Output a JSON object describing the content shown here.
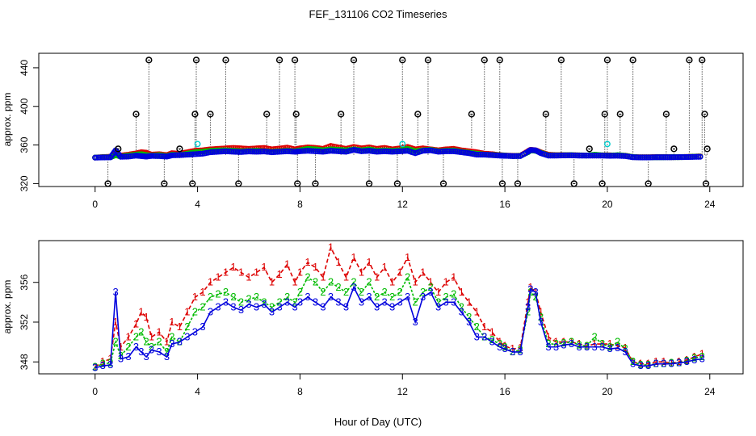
{
  "chart_data": {
    "title": "FEF_131106  CO2 Timeseries",
    "xlabel": "Hour of Day (UTC)",
    "panels": [
      {
        "id": "top",
        "type": "scatter",
        "ylabel": "approx. ppm",
        "xlim": [
          -2.2,
          25.3
        ],
        "ylim": [
          317,
          455
        ],
        "xticks": [
          0,
          4,
          8,
          12,
          16,
          20,
          24
        ],
        "yticks": [
          320,
          360,
          400,
          440
        ],
        "grid": false,
        "spike_base": 350,
        "spikes": [
          {
            "x": 0.5,
            "y": 320
          },
          {
            "x": 0.9,
            "y": 356
          },
          {
            "x": 1.6,
            "y": 392
          },
          {
            "x": 2.1,
            "y": 448
          },
          {
            "x": 2.7,
            "y": 320
          },
          {
            "x": 3.3,
            "y": 356
          },
          {
            "x": 3.8,
            "y": 320
          },
          {
            "x": 3.9,
            "y": 392
          },
          {
            "x": 3.95,
            "y": 448
          },
          {
            "x": 4.5,
            "y": 392
          },
          {
            "x": 5.1,
            "y": 448
          },
          {
            "x": 5.6,
            "y": 320
          },
          {
            "x": 6.7,
            "y": 392
          },
          {
            "x": 7.2,
            "y": 448
          },
          {
            "x": 7.8,
            "y": 448
          },
          {
            "x": 7.85,
            "y": 392
          },
          {
            "x": 7.9,
            "y": 320
          },
          {
            "x": 8.6,
            "y": 320
          },
          {
            "x": 9.6,
            "y": 392
          },
          {
            "x": 10.1,
            "y": 448
          },
          {
            "x": 10.7,
            "y": 320
          },
          {
            "x": 11.8,
            "y": 320
          },
          {
            "x": 12.0,
            "y": 448
          },
          {
            "x": 12.6,
            "y": 392
          },
          {
            "x": 13.0,
            "y": 448
          },
          {
            "x": 13.6,
            "y": 320
          },
          {
            "x": 14.7,
            "y": 392
          },
          {
            "x": 15.2,
            "y": 448
          },
          {
            "x": 15.8,
            "y": 448
          },
          {
            "x": 15.9,
            "y": 320
          },
          {
            "x": 16.5,
            "y": 320
          },
          {
            "x": 17.6,
            "y": 392
          },
          {
            "x": 18.2,
            "y": 448
          },
          {
            "x": 18.7,
            "y": 320
          },
          {
            "x": 19.3,
            "y": 356
          },
          {
            "x": 19.8,
            "y": 320
          },
          {
            "x": 19.9,
            "y": 392
          },
          {
            "x": 20.0,
            "y": 448
          },
          {
            "x": 20.5,
            "y": 392
          },
          {
            "x": 21.0,
            "y": 448
          },
          {
            "x": 21.6,
            "y": 320
          },
          {
            "x": 22.3,
            "y": 392
          },
          {
            "x": 22.6,
            "y": 356
          },
          {
            "x": 23.2,
            "y": 448
          },
          {
            "x": 23.7,
            "y": 448
          },
          {
            "x": 23.8,
            "y": 392
          },
          {
            "x": 23.85,
            "y": 320
          },
          {
            "x": 23.9,
            "y": 356
          }
        ],
        "highlights": [
          {
            "x": 4.0,
            "y": 361
          },
          {
            "x": 12.0,
            "y": 361
          },
          {
            "x": 20.0,
            "y": 361
          }
        ]
      },
      {
        "id": "bottom",
        "type": "line",
        "ylabel": "approx. ppm",
        "xlim": [
          -2.2,
          25.3
        ],
        "ylim": [
          346.8,
          360.2
        ],
        "xticks": [
          0,
          4,
          8,
          12,
          16,
          20,
          24
        ],
        "yticks": [
          348,
          352,
          356
        ],
        "grid": false,
        "series": [
          {
            "name": "1",
            "color": "#dd0000",
            "x": [
              0,
              0.3,
              0.6,
              0.8,
              1.0,
              1.3,
              1.6,
              1.8,
              2.0,
              2.2,
              2.5,
              2.8,
              3.0,
              3.3,
              3.6,
              3.9,
              4.2,
              4.5,
              4.8,
              5.1,
              5.4,
              5.7,
              6.0,
              6.3,
              6.6,
              6.9,
              7.2,
              7.5,
              7.8,
              8.0,
              8.3,
              8.6,
              8.9,
              9.2,
              9.5,
              9.8,
              10.1,
              10.4,
              10.7,
              11.0,
              11.3,
              11.6,
              11.9,
              12.2,
              12.5,
              12.8,
              13.1,
              13.4,
              13.7,
              14.0,
              14.3,
              14.6,
              14.9,
              15.2,
              15.5,
              15.8,
              16.0,
              16.3,
              16.6,
              16.9,
              17.0,
              17.2,
              17.4,
              17.7,
              18.0,
              18.3,
              18.6,
              18.9,
              19.2,
              19.5,
              19.8,
              20.1,
              20.4,
              20.7,
              21.0,
              21.3,
              21.6,
              21.9,
              22.2,
              22.5,
              22.8,
              23.1,
              23.4,
              23.7
            ],
            "y": [
              347.5,
              348.0,
              348.3,
              352.0,
              349.5,
              350.5,
              351.8,
              353.0,
              352.5,
              350.5,
              351.0,
              350.0,
              352.0,
              351.5,
              353.0,
              354.5,
              355.0,
              356.0,
              356.5,
              357.0,
              357.5,
              357.0,
              356.5,
              357.0,
              357.5,
              356.0,
              356.8,
              357.8,
              356.0,
              357.0,
              358.0,
              357.5,
              356.5,
              359.5,
              358.0,
              356.5,
              358.5,
              357.0,
              358.0,
              356.5,
              357.5,
              356.0,
              357.0,
              358.5,
              356.0,
              357.0,
              356.0,
              355.0,
              356.0,
              356.5,
              355.0,
              354.0,
              353.0,
              351.5,
              351.0,
              350.0,
              349.6,
              349.3,
              349.4,
              354.0,
              355.5,
              355.0,
              353.0,
              350.5,
              350.0,
              350.0,
              350.0,
              349.8,
              349.6,
              349.8,
              349.8,
              349.8,
              349.6,
              349.4,
              348.0,
              347.8,
              347.8,
              348.0,
              348.0,
              347.9,
              348.0,
              348.2,
              348.5,
              348.8
            ]
          },
          {
            "name": "2",
            "color": "#00bb00",
            "x": [
              0,
              0.3,
              0.6,
              0.8,
              1.0,
              1.3,
              1.6,
              1.8,
              2.0,
              2.2,
              2.5,
              2.8,
              3.0,
              3.3,
              3.6,
              3.9,
              4.2,
              4.5,
              4.8,
              5.1,
              5.4,
              5.7,
              6.0,
              6.3,
              6.6,
              6.9,
              7.2,
              7.5,
              7.8,
              8.0,
              8.3,
              8.6,
              8.9,
              9.2,
              9.5,
              9.8,
              10.1,
              10.4,
              10.7,
              11.0,
              11.3,
              11.6,
              11.9,
              12.2,
              12.5,
              12.8,
              13.1,
              13.4,
              13.7,
              14.0,
              14.3,
              14.6,
              14.9,
              15.2,
              15.5,
              15.8,
              16.0,
              16.3,
              16.6,
              16.9,
              17.0,
              17.2,
              17.4,
              17.7,
              18.0,
              18.3,
              18.6,
              18.9,
              19.2,
              19.5,
              19.8,
              20.1,
              20.4,
              20.7,
              21.0,
              21.3,
              21.6,
              21.9,
              22.2,
              22.5,
              22.8,
              23.1,
              23.4,
              23.7
            ],
            "y": [
              347.5,
              347.8,
              347.9,
              350.0,
              348.6,
              349.5,
              350.5,
              351.0,
              350.0,
              349.5,
              350.0,
              349.0,
              350.5,
              350.0,
              351.5,
              353.0,
              353.5,
              354.5,
              354.8,
              355.0,
              354.5,
              354.0,
              354.3,
              354.5,
              354.0,
              353.5,
              354.0,
              354.5,
              354.0,
              355.0,
              356.5,
              356.0,
              355.0,
              356.0,
              355.5,
              355.0,
              356.0,
              355.0,
              356.0,
              354.5,
              355.0,
              354.5,
              355.0,
              356.5,
              354.0,
              355.0,
              355.5,
              354.0,
              354.5,
              354.8,
              353.5,
              352.5,
              351.5,
              350.5,
              350.2,
              349.8,
              349.5,
              349.0,
              349.2,
              353.0,
              355.0,
              354.5,
              352.5,
              349.8,
              349.8,
              349.9,
              350.0,
              349.7,
              349.6,
              350.5,
              349.8,
              349.5,
              350.0,
              349.3,
              348.0,
              347.7,
              347.7,
              347.8,
              347.8,
              347.9,
              347.9,
              348.1,
              348.4,
              348.5
            ]
          },
          {
            "name": "3",
            "color": "#0000dd",
            "x": [
              0,
              0.3,
              0.6,
              0.8,
              1.0,
              1.3,
              1.6,
              1.8,
              2.0,
              2.2,
              2.5,
              2.8,
              3.0,
              3.3,
              3.6,
              3.9,
              4.2,
              4.5,
              4.8,
              5.1,
              5.4,
              5.7,
              6.0,
              6.3,
              6.6,
              6.9,
              7.2,
              7.5,
              7.8,
              8.0,
              8.3,
              8.6,
              8.9,
              9.2,
              9.5,
              9.8,
              10.1,
              10.4,
              10.7,
              11.0,
              11.3,
              11.6,
              11.9,
              12.2,
              12.5,
              12.8,
              13.1,
              13.4,
              13.7,
              14.0,
              14.3,
              14.6,
              14.9,
              15.2,
              15.5,
              15.8,
              16.0,
              16.3,
              16.6,
              16.9,
              17.0,
              17.2,
              17.4,
              17.7,
              18.0,
              18.3,
              18.6,
              18.9,
              19.2,
              19.5,
              19.8,
              20.1,
              20.4,
              20.7,
              21.0,
              21.3,
              21.6,
              21.9,
              22.2,
              22.5,
              22.8,
              23.1,
              23.4,
              23.7
            ],
            "y": [
              347.4,
              347.6,
              347.7,
              355.0,
              348.3,
              348.5,
              349.5,
              349.0,
              348.5,
              349.2,
              349.0,
              348.5,
              349.8,
              350.0,
              350.5,
              351.0,
              351.5,
              353.0,
              353.5,
              354.0,
              353.5,
              353.2,
              353.8,
              353.5,
              353.8,
              353.0,
              353.5,
              354.0,
              353.5,
              354.0,
              354.5,
              354.0,
              353.5,
              354.5,
              354.0,
              353.5,
              355.5,
              354.0,
              354.5,
              353.5,
              354.0,
              353.5,
              354.0,
              354.5,
              352.0,
              354.5,
              355.0,
              353.5,
              354.0,
              354.0,
              353.0,
              352.0,
              350.5,
              350.5,
              350.0,
              349.5,
              349.3,
              349.0,
              349.0,
              353.5,
              355.3,
              355.0,
              352.0,
              349.5,
              349.5,
              349.7,
              349.8,
              349.5,
              349.5,
              349.5,
              349.5,
              349.3,
              349.4,
              349.0,
              347.8,
              347.6,
              347.6,
              347.8,
              347.8,
              347.8,
              347.9,
              348.0,
              348.2,
              348.3
            ]
          }
        ]
      }
    ]
  }
}
